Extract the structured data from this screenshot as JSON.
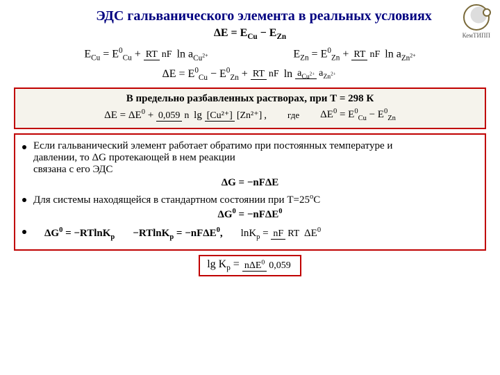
{
  "title": "ЭДС гальванического элемента в реальных условиях",
  "logo_text": "КемТИПП",
  "eq_main": "ΔE = E_Cu − E_Zn",
  "nernst": {
    "cu_lhs": "E_Cu = E⁰_Cu +",
    "zn_lhs": "E_Zn = E⁰_Zn +",
    "rt_top": "RT",
    "rt_bot": "nF",
    "ln_acu": "ln a_Cu²⁺",
    "ln_azn": "ln a_Zn²⁺"
  },
  "dE": {
    "lhs": "ΔE = E⁰_Cu − E⁰_Zn +",
    "frac_top": "RT",
    "frac_bot": "nF",
    "ln": "ln",
    "ratio_top": "a_Cu²⁺",
    "ratio_bot": "a_Zn²⁺"
  },
  "box1": {
    "title": "В предельно разбавленных растворах, при Т = 298 К",
    "eq1_lhs": "ΔE = ΔE⁰ +",
    "coef_top": "0,059",
    "coef_bot": "n",
    "lg": "lg",
    "brack_top": "[Cu²⁺]",
    "brack_bot": "[Zn²⁺]",
    "comma": ",",
    "gde": "где",
    "eq2": "ΔE⁰ = E⁰_Cu − E⁰_Zn"
  },
  "box2": {
    "b1a": "Если гальванический элемент работает обратимо при постоянных температуре и",
    "b1b": "давлении, то ΔG протекающей в нем реакции",
    "b1c": "связана с его ЭДС",
    "eq_dg": "ΔG = −nFΔE",
    "b2": "Для системы находящейся в стандартном состоянии при Т=25ºС",
    "eq_dg0": "ΔG⁰ = −nFΔE⁰",
    "b3a": "ΔG⁰ = −RTlnK_p",
    "b3b": "−RTlnK_p = −nFΔE⁰,",
    "lnk_lhs": "lnK_p =",
    "lnk_top": "nF",
    "lnk_bot": "RT",
    "lnk_rhs": "ΔE⁰"
  },
  "final": {
    "lhs": "lg K_p =",
    "top": "nΔE⁰",
    "bot": "0,059"
  },
  "colors": {
    "title": "#000080",
    "border": "#c00000",
    "box_bg": "#f5f3ec"
  }
}
